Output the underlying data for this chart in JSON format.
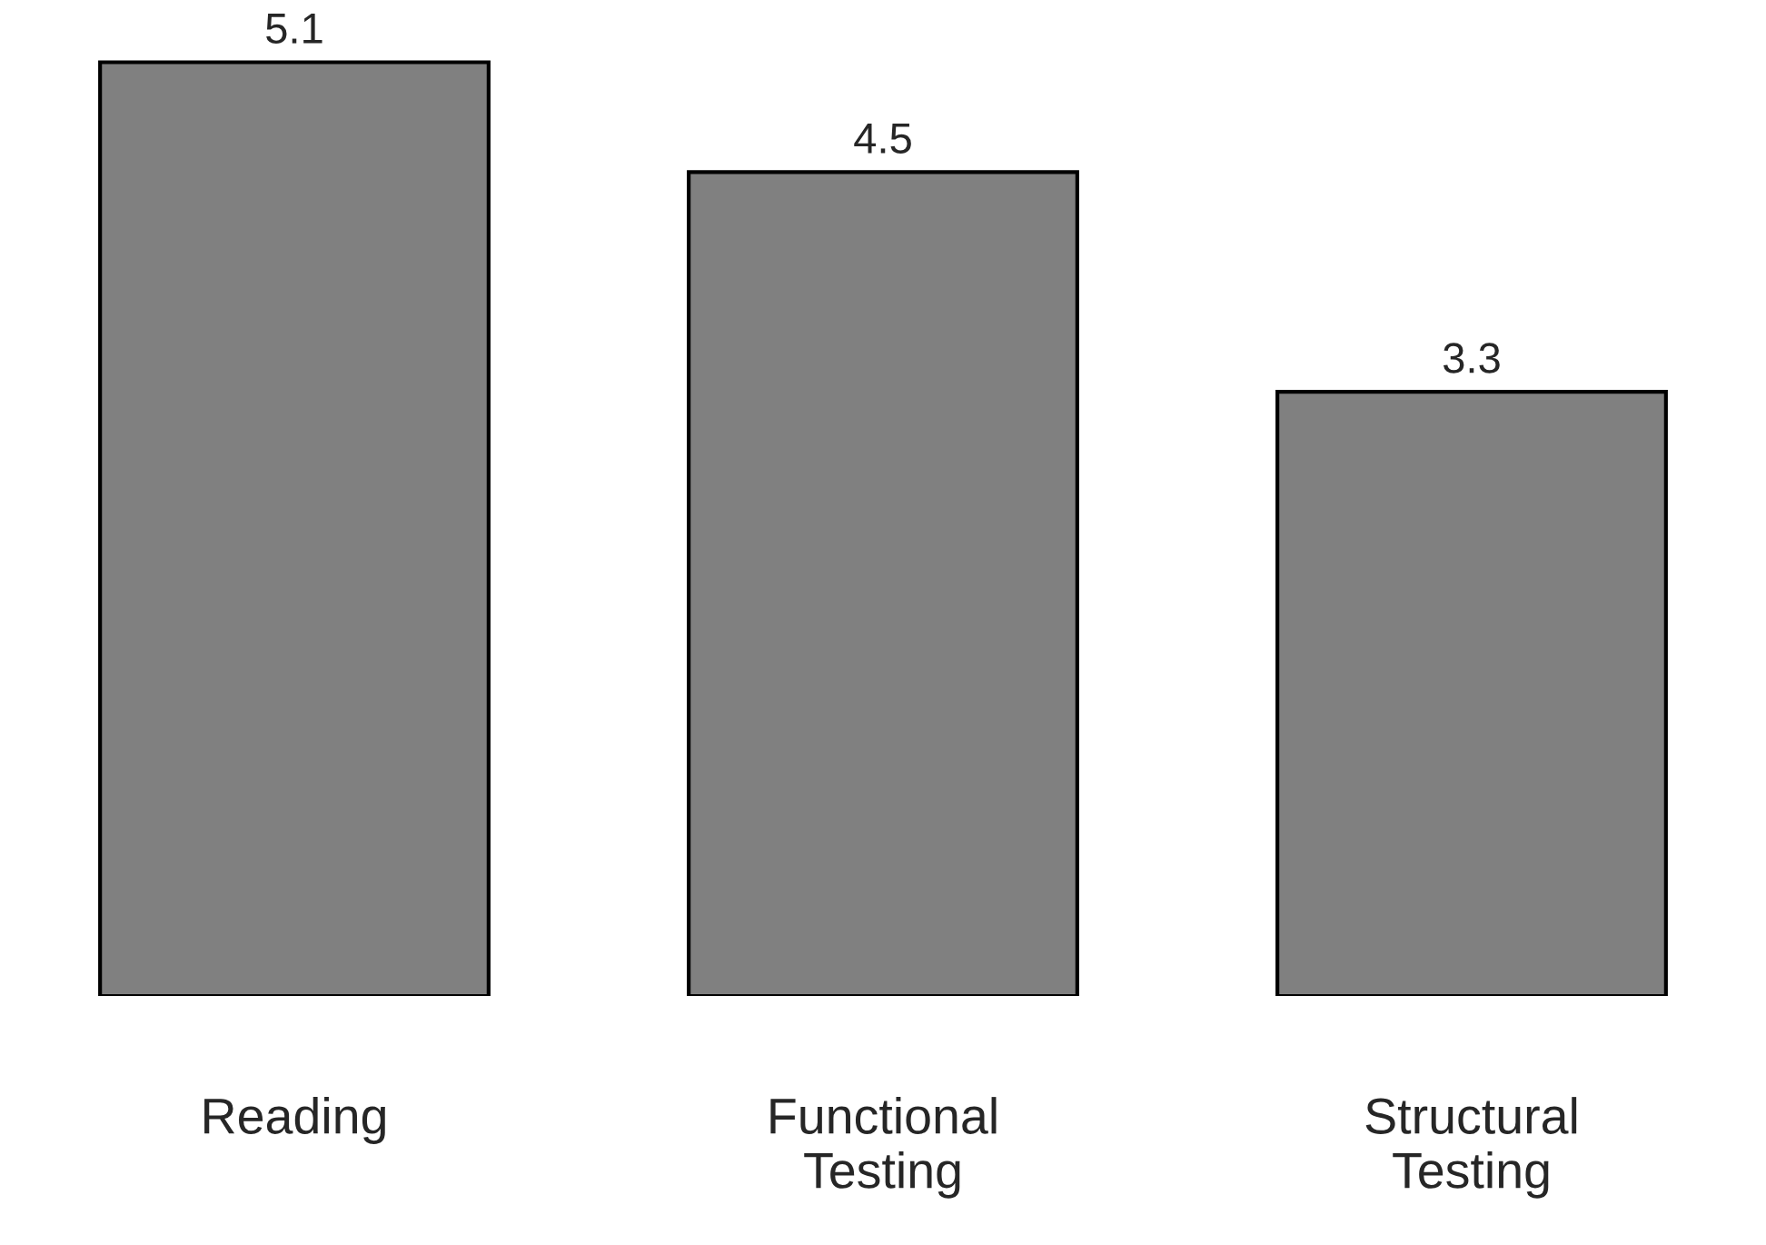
{
  "chart_data": {
    "type": "bar",
    "categories": [
      "Reading",
      "Functional\nTesting",
      "Structural\nTesting"
    ],
    "values": [
      5.1,
      4.5,
      3.3
    ],
    "color": "#808080",
    "data_labels": true,
    "grid": false,
    "legend": false
  }
}
